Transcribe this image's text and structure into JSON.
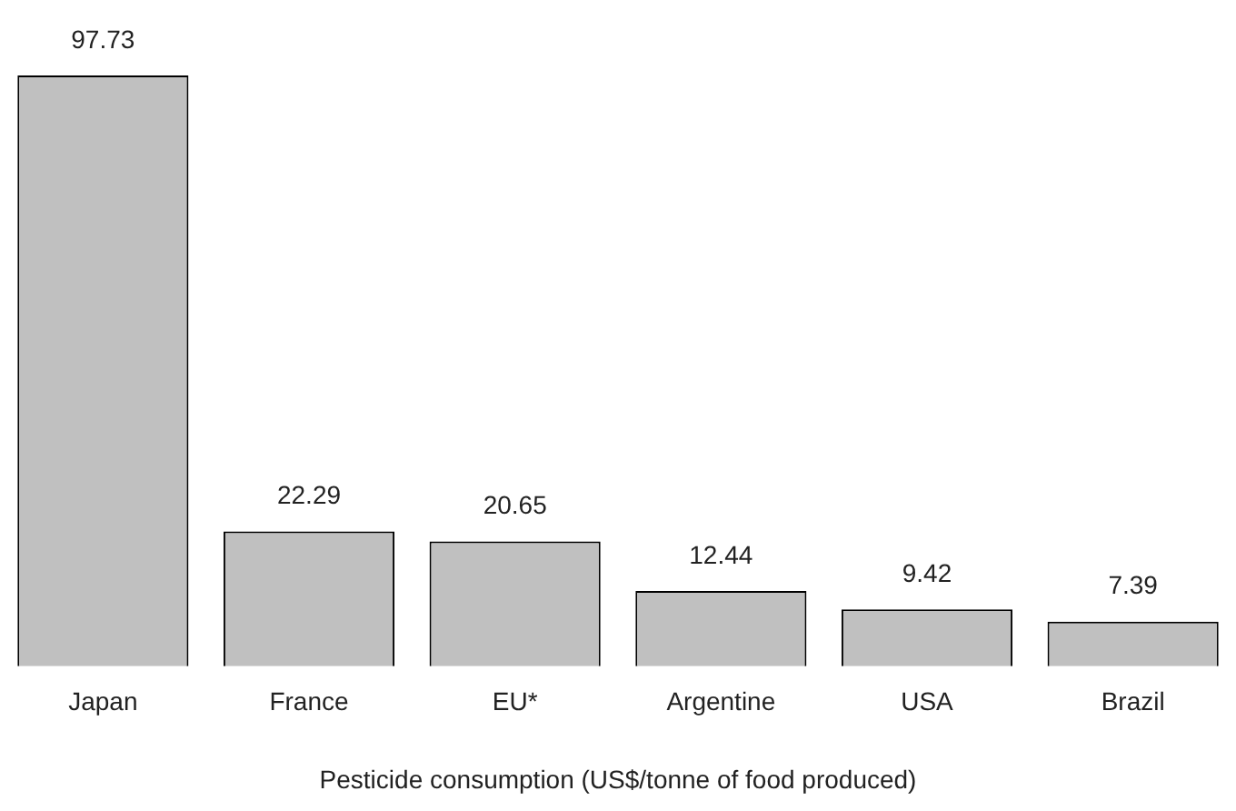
{
  "chart_data": {
    "type": "bar",
    "xlabel": "Pesticide consumption (US$/tonne of food produced)",
    "categories": [
      "Japan",
      "France",
      "EU*",
      "Argentine",
      "USA",
      "Brazil"
    ],
    "values": [
      97.73,
      22.29,
      20.65,
      12.44,
      9.42,
      7.39
    ],
    "color": "#c0c0c0",
    "data_labels": true,
    "grid": false,
    "legend": false
  }
}
